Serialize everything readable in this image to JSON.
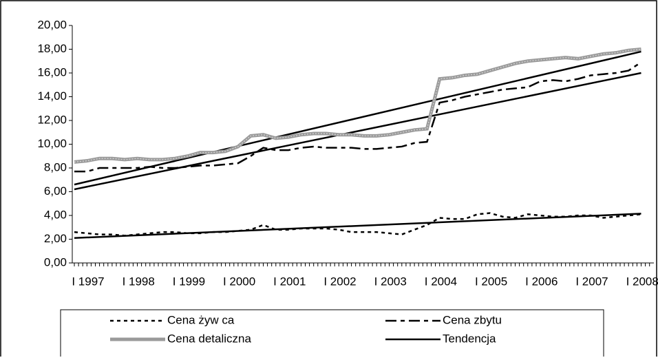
{
  "chart_data": {
    "type": "line",
    "categories": [
      "I 1997",
      null,
      null,
      null,
      "I 1998",
      null,
      null,
      null,
      "I 1999",
      null,
      null,
      null,
      "I 2000",
      null,
      null,
      null,
      "I 2001",
      null,
      null,
      null,
      "I 2002",
      null,
      null,
      null,
      "I 2003",
      null,
      null,
      null,
      "I 2004",
      null,
      null,
      null,
      "I 2005",
      null,
      null,
      null,
      "I 2006",
      null,
      null,
      null,
      "I 2007",
      null,
      null,
      null,
      "I 2008",
      null
    ],
    "series": [
      {
        "name": "Cena żyw ca",
        "color": "#000000",
        "width": 2.5,
        "dash": "5 5",
        "values": [
          2.6,
          2.5,
          2.4,
          2.4,
          2.3,
          2.4,
          2.5,
          2.6,
          2.6,
          2.5,
          2.5,
          2.6,
          2.6,
          2.7,
          2.8,
          3.2,
          2.8,
          2.8,
          2.9,
          2.9,
          2.9,
          2.8,
          2.6,
          2.6,
          2.6,
          2.5,
          2.4,
          2.8,
          3.2,
          3.8,
          3.7,
          3.7,
          4.1,
          4.2,
          3.9,
          3.8,
          4.1,
          4.0,
          3.9,
          3.9,
          4.0,
          4.0,
          3.8,
          3.9,
          4.0,
          4.1
        ]
      },
      {
        "name": "Cena zbytu",
        "color": "#000000",
        "width": 2.5,
        "dash": "16 6 6 6",
        "values": [
          7.7,
          7.7,
          8.0,
          8.0,
          8.0,
          8.0,
          8.1,
          8.0,
          8.0,
          8.1,
          8.2,
          8.2,
          8.3,
          8.4,
          9.0,
          9.7,
          9.5,
          9.5,
          9.7,
          9.8,
          9.7,
          9.7,
          9.7,
          9.6,
          9.6,
          9.7,
          9.8,
          10.1,
          10.2,
          13.5,
          13.7,
          14.0,
          14.2,
          14.4,
          14.6,
          14.7,
          14.8,
          15.3,
          15.4,
          15.3,
          15.5,
          15.8,
          15.9,
          16.0,
          16.2,
          16.9
        ]
      },
      {
        "name": "Cena detaliczna",
        "color": "#9a9a9a",
        "width": 5,
        "dash": "none",
        "values": [
          8.5,
          8.6,
          8.8,
          8.8,
          8.7,
          8.8,
          8.7,
          8.7,
          8.8,
          9.0,
          9.3,
          9.3,
          9.4,
          9.8,
          10.7,
          10.8,
          10.5,
          10.6,
          10.8,
          10.9,
          10.9,
          10.8,
          10.8,
          10.7,
          10.7,
          10.8,
          11.0,
          11.2,
          11.3,
          15.5,
          15.6,
          15.8,
          15.9,
          16.2,
          16.5,
          16.8,
          17.0,
          17.1,
          17.2,
          17.3,
          17.2,
          17.4,
          17.6,
          17.7,
          17.9,
          18.0
        ]
      }
    ],
    "trend": {
      "name": "Tendencja",
      "color": "#000000",
      "lines": [
        {
          "values": [
            6.6,
            17.8
          ]
        },
        {
          "values": [
            6.2,
            16.0
          ]
        },
        {
          "values": [
            2.1,
            4.15
          ]
        }
      ]
    },
    "ylim": [
      0,
      20
    ],
    "yticks": [
      {
        "value": 0,
        "label": "0,00"
      },
      {
        "value": 2,
        "label": "2,00"
      },
      {
        "value": 4,
        "label": "4,00"
      },
      {
        "value": 6,
        "label": "6,00"
      },
      {
        "value": 8,
        "label": "8,00"
      },
      {
        "value": 10,
        "label": "10,00"
      },
      {
        "value": 12,
        "label": "12,00"
      },
      {
        "value": 14,
        "label": "14,00"
      },
      {
        "value": 16,
        "label": "16,00"
      },
      {
        "value": 18,
        "label": "18,00"
      },
      {
        "value": 20,
        "label": "20,00"
      }
    ],
    "grid": false
  }
}
